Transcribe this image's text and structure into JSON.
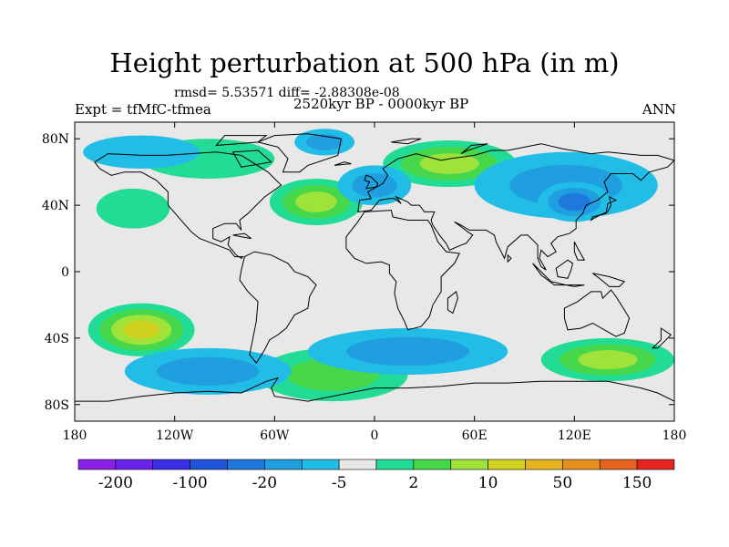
{
  "chart_data": {
    "type": "heatmap",
    "title": "Height perturbation at 500 hPa (in m)",
    "stats_text": "rmsd= 5.53571 diff= -2.88308e-08",
    "left_label": "Expt = tfMfC-tfmea",
    "center_label": "2520kyr BP - 0000kyr BP",
    "right_label": "ANN",
    "x_ticks": [
      "180",
      "120W",
      "60W",
      "0",
      "60E",
      "120E",
      "180"
    ],
    "x_tick_values": [
      -180,
      -120,
      -60,
      0,
      60,
      120,
      180
    ],
    "y_ticks": [
      "80N",
      "40N",
      "0",
      "40S",
      "80S"
    ],
    "y_tick_values": [
      80,
      40,
      0,
      -40,
      -80
    ],
    "xlim": [
      -180,
      180
    ],
    "ylim": [
      -90,
      90
    ],
    "colorbar": {
      "labels": [
        "-200",
        "-100",
        "-20",
        "-5",
        "2",
        "10",
        "50",
        "150"
      ],
      "colors": [
        "#8c1fe6",
        "#6a22e8",
        "#3a2fe8",
        "#1f55dd",
        "#1f79dd",
        "#1f9fe0",
        "#22bde6",
        "#e8e8e8",
        "#22dc96",
        "#46d84a",
        "#9ee23a",
        "#cfd21f",
        "#e6b41f",
        "#e6901f",
        "#e6621f",
        "#e6241f"
      ]
    },
    "blobs": [
      {
        "lon": -35,
        "lat": 42,
        "rx": 28,
        "ry": 14,
        "level": 3
      },
      {
        "lon": 45,
        "lat": 65,
        "rx": 40,
        "ry": 14,
        "level": 3
      },
      {
        "lon": -140,
        "lat": -35,
        "rx": 32,
        "ry": 16,
        "level": 4
      },
      {
        "lon": 140,
        "lat": -53,
        "rx": 40,
        "ry": 13,
        "level": 3
      },
      {
        "lon": -25,
        "lat": -62,
        "rx": 45,
        "ry": 16,
        "level": 2
      },
      {
        "lon": -100,
        "lat": 68,
        "rx": 40,
        "ry": 12,
        "level": 1
      },
      {
        "lon": -145,
        "lat": 38,
        "rx": 22,
        "ry": 12,
        "level": 1
      },
      {
        "lon": -30,
        "lat": 78,
        "rx": 18,
        "ry": 8,
        "level": -2
      },
      {
        "lon": 0,
        "lat": 52,
        "rx": 22,
        "ry": 12,
        "level": -2
      },
      {
        "lon": 115,
        "lat": 52,
        "rx": 55,
        "ry": 20,
        "level": -2
      },
      {
        "lon": 120,
        "lat": 42,
        "rx": 22,
        "ry": 12,
        "level": -3
      },
      {
        "lon": 20,
        "lat": -48,
        "rx": 60,
        "ry": 14,
        "level": -2
      },
      {
        "lon": -100,
        "lat": -60,
        "rx": 50,
        "ry": 14,
        "level": -2
      },
      {
        "lon": -140,
        "lat": 72,
        "rx": 35,
        "ry": 10,
        "level": -1
      }
    ]
  }
}
